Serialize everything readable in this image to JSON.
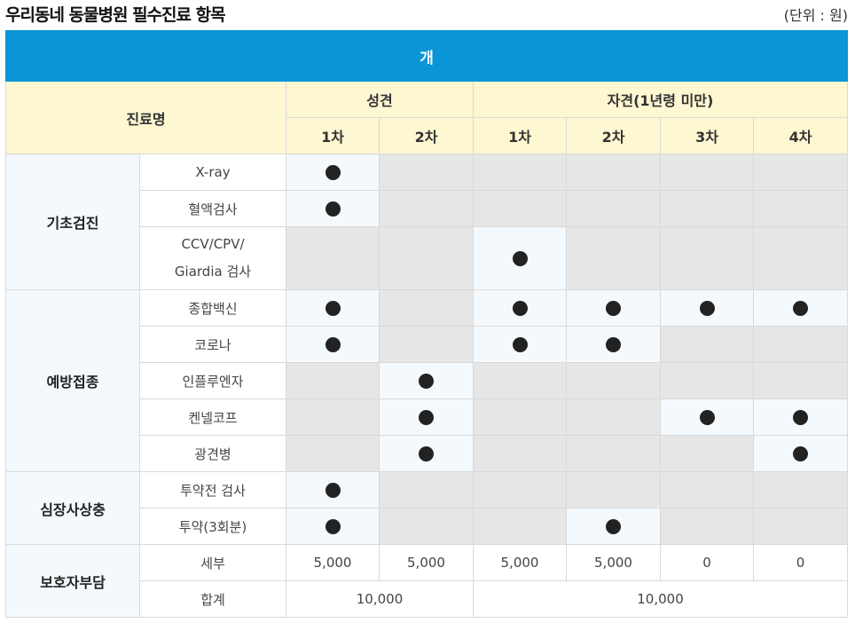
{
  "page": {
    "title": "우리동네 동물병원 필수진료 항목",
    "unit": "(단위 : 원)"
  },
  "table": {
    "species": "개",
    "header": {
      "name_col": "진료명",
      "adult": "성견",
      "puppy": "자견(1년령 미만)",
      "rounds": [
        "1차",
        "2차",
        "1차",
        "2차",
        "3차",
        "4차"
      ]
    },
    "groups": [
      {
        "name": "기초검진",
        "items": [
          "X-ray",
          "혈액검사",
          "CCV/CPV/",
          "Giardia 검사"
        ]
      },
      {
        "name": "예방접종",
        "items": [
          "종합백신",
          "코로나",
          "인플루엔자",
          "켄넬코프",
          "광견병"
        ]
      },
      {
        "name": "심장사상충",
        "items": [
          "투약전 검사",
          "투약(3회분)"
        ]
      },
      {
        "name": "보호자부담",
        "items": [
          "세부",
          "합계"
        ]
      }
    ],
    "marks": {
      "xray": [
        1,
        0,
        0,
        0,
        0,
        0
      ],
      "blood": [
        1,
        0,
        0,
        0,
        0,
        0
      ],
      "ccv": [
        0,
        0,
        1,
        0,
        0,
        0
      ],
      "combo": [
        1,
        0,
        1,
        1,
        1,
        1
      ],
      "corona": [
        1,
        0,
        1,
        1,
        0,
        0
      ],
      "influenza": [
        0,
        1,
        0,
        0,
        0,
        0
      ],
      "kennel": [
        0,
        1,
        0,
        0,
        1,
        1
      ],
      "rabies": [
        0,
        1,
        0,
        0,
        0,
        1
      ],
      "pretest": [
        1,
        0,
        0,
        0,
        0,
        0
      ],
      "dose": [
        1,
        0,
        0,
        1,
        0,
        0
      ]
    },
    "detail_costs": [
      "5,000",
      "5,000",
      "5,000",
      "5,000",
      "0",
      "0"
    ],
    "total_costs": {
      "adult": "10,000",
      "puppy": "10,000"
    },
    "colors": {
      "header_blue": "#0a96d6",
      "header_yellow": "#fdf7d2",
      "cell_on": "#f3f9fd",
      "cell_off": "#e6e6e6"
    }
  }
}
